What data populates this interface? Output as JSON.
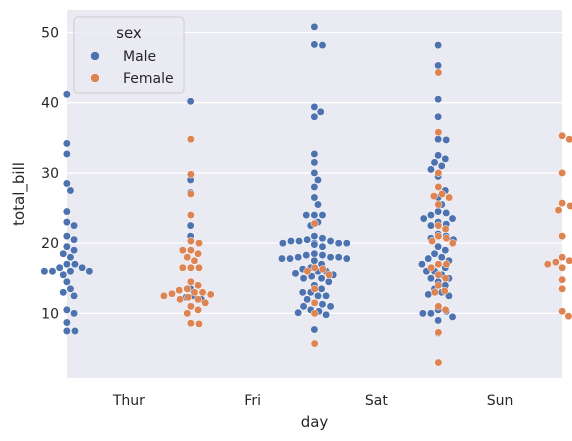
{
  "chart_data": {
    "type": "scatter",
    "subtype": "swarm",
    "xlabel": "day",
    "ylabel": "total_bill",
    "categories": [
      "Thur",
      "Fri",
      "Sat",
      "Sun"
    ],
    "ylim": [
      0.8,
      53.2
    ],
    "yticks": [
      10,
      20,
      30,
      40,
      50
    ],
    "grid": true,
    "legend": {
      "title": "sex",
      "placement": "top-left"
    },
    "colors": {
      "Male": "#4c72b0",
      "Female": "#dd8452",
      "background": "#eaeaf2"
    },
    "series": [
      {
        "name": "Male",
        "values": {
          "Thur": [
            7.5,
            7.5,
            8.7,
            10.0,
            10.5,
            12.5,
            13.0,
            13.5,
            14.5,
            15.5,
            16.0,
            16.0,
            16.0,
            16.0,
            16.5,
            16.5,
            17.0,
            17.0,
            18.0,
            18.5,
            19.0,
            19.5,
            20.5,
            21.0,
            22.5,
            23.0,
            24.5,
            27.5,
            28.5,
            32.7,
            34.2,
            41.2
          ],
          "Fri": [
            8.6,
            12.0,
            12.3,
            12.5,
            13.5,
            21.0,
            22.5,
            27.2,
            29.0,
            40.2
          ],
          "Sat": [
            7.7,
            9.8,
            10.1,
            10.3,
            10.5,
            11.0,
            11.0,
            11.3,
            11.5,
            12.0,
            12.5,
            12.5,
            13.0,
            13.0,
            13.5,
            14.0,
            14.5,
            15.0,
            15.0,
            15.3,
            15.5,
            15.7,
            16.0,
            16.0,
            16.3,
            16.5,
            17.0,
            17.5,
            17.5,
            17.8,
            17.8,
            17.8,
            18.0,
            18.0,
            18.0,
            18.3,
            18.3,
            18.5,
            19.5,
            19.8,
            20.0,
            20.0,
            20.0,
            20.0,
            20.3,
            20.3,
            20.3,
            20.5,
            20.7,
            21.0,
            22.5,
            23.0,
            24.0,
            24.0,
            24.0,
            25.5,
            26.5,
            28.0,
            29.0,
            30.0,
            31.5,
            32.7,
            38.0,
            38.7,
            39.4,
            48.2,
            48.3,
            50.8
          ],
          "Sun": [
            7.2,
            9.0,
            9.5,
            10.0,
            10.0,
            10.3,
            10.5,
            12.5,
            12.7,
            13.0,
            13.5,
            14.0,
            14.5,
            15.0,
            15.0,
            15.5,
            16.0,
            16.0,
            16.5,
            17.0,
            17.0,
            17.5,
            17.8,
            18.0,
            18.5,
            19.0,
            19.5,
            20.5,
            20.7,
            21.0,
            21.3,
            22.5,
            22.7,
            23.0,
            23.5,
            23.5,
            24.0,
            24.3,
            24.5,
            25.5,
            26.5,
            27.5,
            28.0,
            29.5,
            30.5,
            31.0,
            31.5,
            32.0,
            32.5,
            34.7,
            34.8,
            38.0,
            40.5,
            45.3,
            48.2
          ]
        }
      },
      {
        "name": "Female",
        "values": {
          "Thur": [
            8.5,
            8.6,
            10.0,
            10.5,
            11.0,
            11.5,
            12.0,
            12.0,
            12.3,
            12.5,
            12.7,
            12.8,
            13.0,
            13.0,
            13.3,
            13.5,
            14.0,
            14.5,
            16.5,
            16.5,
            16.5,
            17.5,
            18.0,
            18.5,
            19.0,
            19.0,
            20.0,
            20.3,
            24.0,
            27.0,
            29.8,
            34.8
          ],
          "Fri": [
            5.7,
            10.0,
            11.5,
            13.5,
            15.5,
            16.0,
            16.3,
            16.5,
            22.8
          ],
          "Sat": [
            3.0,
            7.3,
            10.5,
            11.0,
            13.0,
            13.2,
            14.0,
            15.0,
            15.5,
            16.5,
            17.0,
            17.0,
            20.0,
            20.3,
            20.7,
            21.0,
            22.0,
            22.5,
            25.5,
            26.5,
            26.7,
            27.0,
            28.0,
            30.0,
            35.8,
            44.3
          ],
          "Sun": [
            9.6,
            10.3,
            13.5,
            14.8,
            16.5,
            17.0,
            17.0,
            17.3,
            17.5,
            18.0,
            21.0,
            24.7,
            25.3,
            25.7,
            30.0,
            34.8,
            35.3
          ]
        }
      }
    ]
  }
}
